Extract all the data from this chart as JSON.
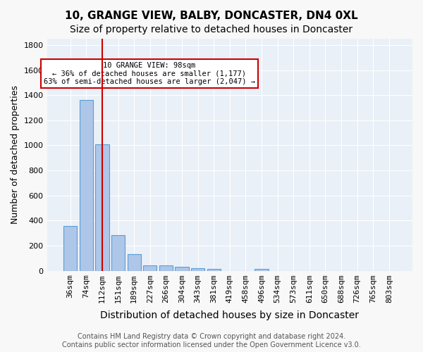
{
  "title1": "10, GRANGE VIEW, BALBY, DONCASTER, DN4 0XL",
  "title2": "Size of property relative to detached houses in Doncaster",
  "xlabel": "Distribution of detached houses by size in Doncaster",
  "ylabel": "Number of detached properties",
  "categories": [
    "36sqm",
    "74sqm",
    "112sqm",
    "151sqm",
    "189sqm",
    "227sqm",
    "266sqm",
    "304sqm",
    "343sqm",
    "381sqm",
    "419sqm",
    "458sqm",
    "496sqm",
    "534sqm",
    "573sqm",
    "611sqm",
    "650sqm",
    "688sqm",
    "726sqm",
    "765sqm",
    "803sqm"
  ],
  "values": [
    355,
    1360,
    1010,
    285,
    130,
    42,
    42,
    30,
    18,
    15,
    0,
    0,
    15,
    0,
    0,
    0,
    0,
    0,
    0,
    0,
    0
  ],
  "bar_color": "#aec6e8",
  "bar_edge_color": "#5a9fd4",
  "vline_x": 2,
  "vline_color": "#cc0000",
  "annotation_text": "10 GRANGE VIEW: 98sqm\n← 36% of detached houses are smaller (1,177)\n63% of semi-detached houses are larger (2,047) →",
  "annotation_box_color": "#ffffff",
  "annotation_box_edge_color": "#cc0000",
  "ylim": [
    0,
    1850
  ],
  "yticks": [
    0,
    200,
    400,
    600,
    800,
    1000,
    1200,
    1400,
    1600,
    1800
  ],
  "bg_color": "#eaf0f8",
  "footer_text": "Contains HM Land Registry data © Crown copyright and database right 2024.\nContains public sector information licensed under the Open Government Licence v3.0.",
  "grid_color": "#ffffff",
  "title1_fontsize": 11,
  "title2_fontsize": 10,
  "xlabel_fontsize": 10,
  "ylabel_fontsize": 9,
  "tick_fontsize": 8,
  "footer_fontsize": 7
}
